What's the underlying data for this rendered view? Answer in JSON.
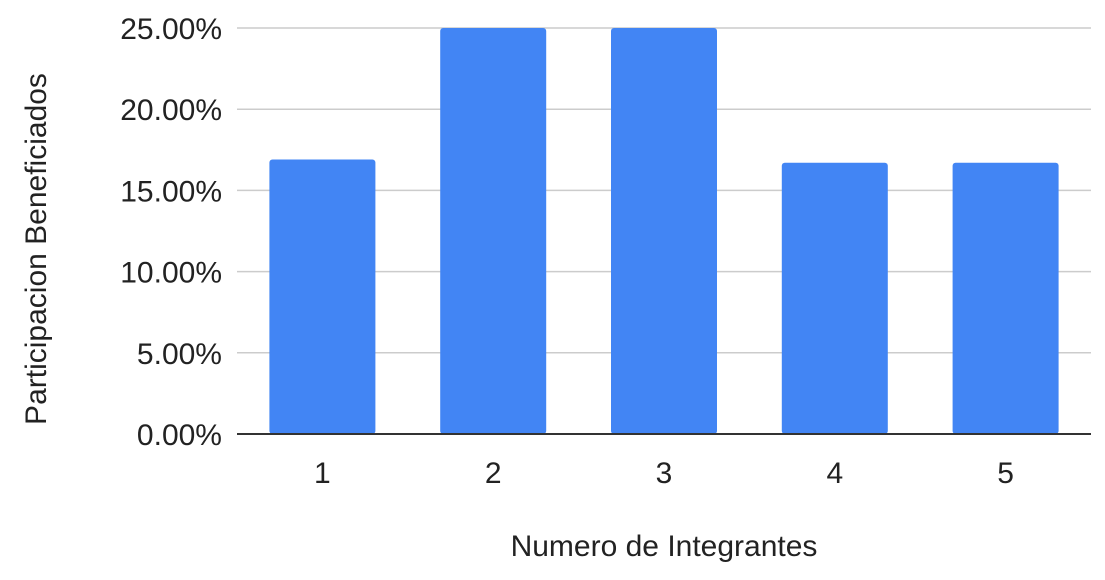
{
  "chart_data": {
    "type": "bar",
    "title": "",
    "xlabel": "Numero de Integrantes",
    "ylabel": "Participacion Beneficiados",
    "categories": [
      "1",
      "2",
      "3",
      "4",
      "5"
    ],
    "series": [
      {
        "values": [
          16.9,
          25.0,
          25.0,
          16.7,
          16.7
        ]
      }
    ],
    "ylim": [
      0,
      25
    ],
    "yticks": [
      {
        "value": 0,
        "label": "0.00%"
      },
      {
        "value": 5,
        "label": "5.00%"
      },
      {
        "value": 10,
        "label": "10.00%"
      },
      {
        "value": 15,
        "label": "15.00%"
      },
      {
        "value": 20,
        "label": "20.00%"
      },
      {
        "value": 25,
        "label": "25.00%"
      }
    ],
    "grid": true,
    "legend": "none",
    "colors": {
      "bar": "#4285f4",
      "grid": "#cccccc",
      "baseline": "#333333",
      "text": "#222222"
    }
  }
}
